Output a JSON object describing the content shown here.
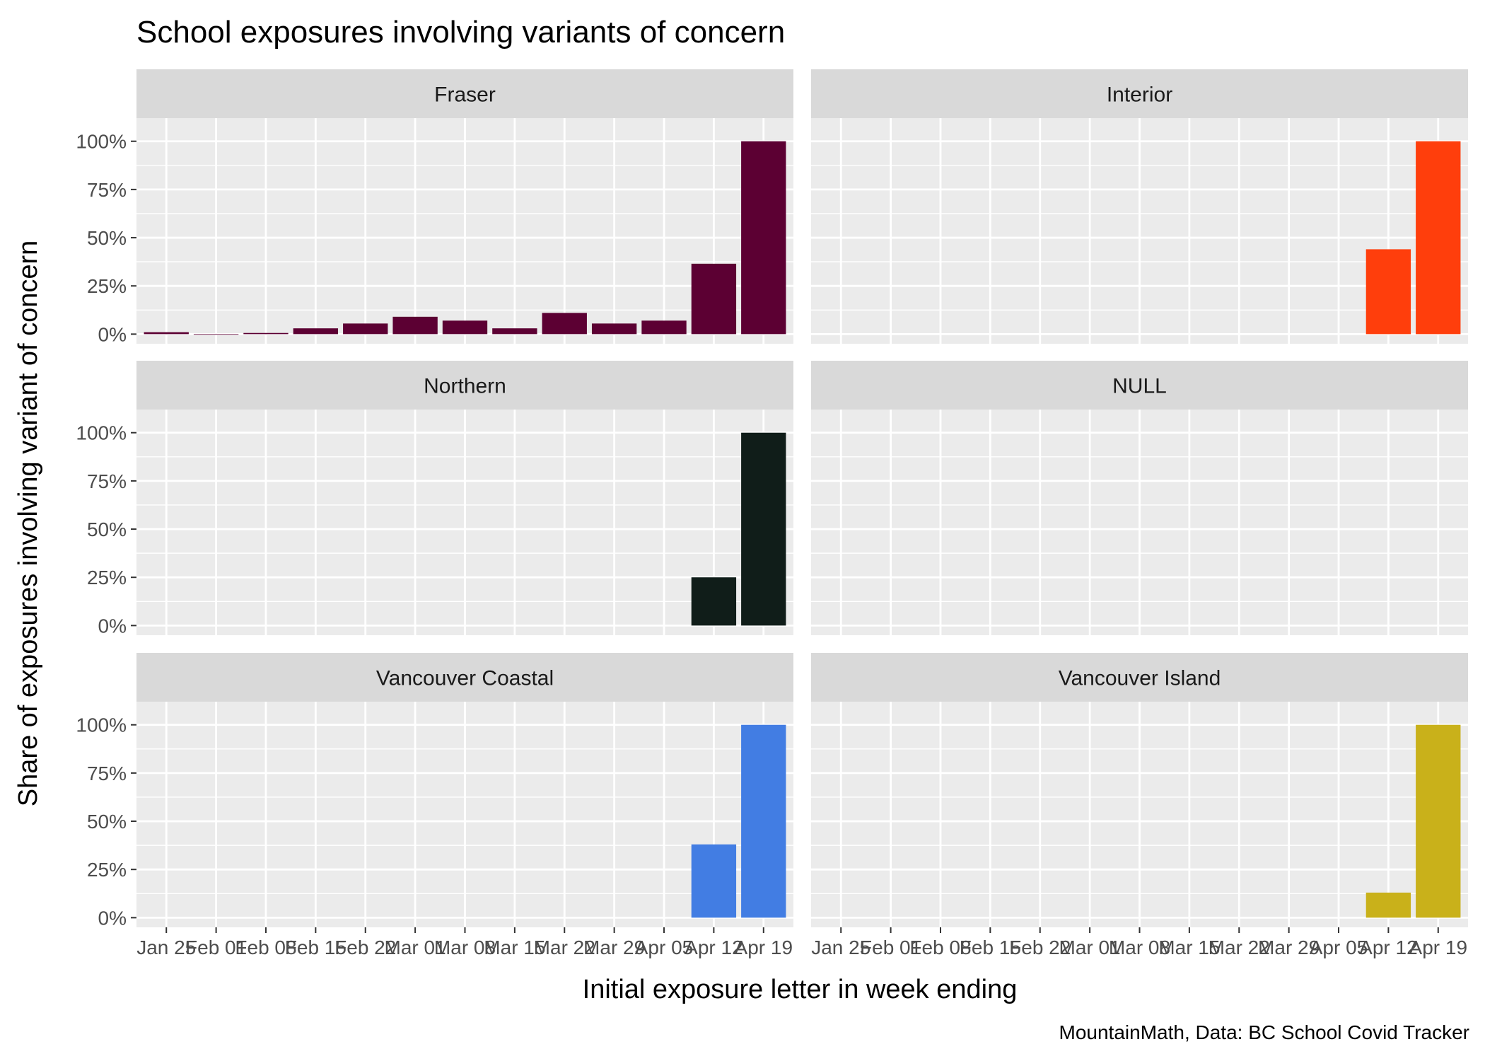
{
  "chart_data": {
    "type": "bar",
    "title": "School exposures involving variants of concern",
    "xlabel": "Initial exposure letter in week ending",
    "ylabel": "Share of exposures involving variant of concern",
    "caption": "MountainMath, Data: BC School Covid Tracker",
    "categories": [
      "Jan 25",
      "Feb 01",
      "Feb 08",
      "Feb 15",
      "Feb 22",
      "Mar 01",
      "Mar 08",
      "Mar 15",
      "Mar 22",
      "Mar 29",
      "Apr 05",
      "Apr 12",
      "Apr 19"
    ],
    "y_ticks": [
      "0%",
      "25%",
      "50%",
      "75%",
      "100%"
    ],
    "ylim": [
      0,
      1.0
    ],
    "grid": true,
    "legend": "none",
    "panels": [
      {
        "name": "Fraser",
        "color": "#5c0033",
        "values": [
          0.01,
          0,
          0.006,
          0.03,
          0.055,
          0.09,
          0.07,
          0.03,
          0.11,
          0.055,
          0.07,
          0.365,
          1.0
        ]
      },
      {
        "name": "Interior",
        "color": "#ff3e0c",
        "values": [
          null,
          null,
          null,
          null,
          null,
          null,
          null,
          null,
          null,
          null,
          null,
          0.44,
          1.0
        ]
      },
      {
        "name": "Northern",
        "color": "#101d19",
        "values": [
          null,
          null,
          null,
          null,
          null,
          null,
          null,
          null,
          null,
          null,
          null,
          0.25,
          1.0
        ]
      },
      {
        "name": "NULL",
        "color": "#888888",
        "values": [
          null,
          null,
          null,
          null,
          null,
          null,
          null,
          null,
          null,
          null,
          null,
          null,
          null
        ]
      },
      {
        "name": "Vancouver Coastal",
        "color": "#427de3",
        "values": [
          null,
          null,
          null,
          null,
          null,
          null,
          null,
          null,
          null,
          null,
          null,
          0.38,
          1.0
        ]
      },
      {
        "name": "Vancouver Island",
        "color": "#c9b11a",
        "values": [
          null,
          null,
          null,
          null,
          null,
          null,
          null,
          null,
          null,
          null,
          null,
          0.13,
          1.0
        ]
      }
    ]
  }
}
